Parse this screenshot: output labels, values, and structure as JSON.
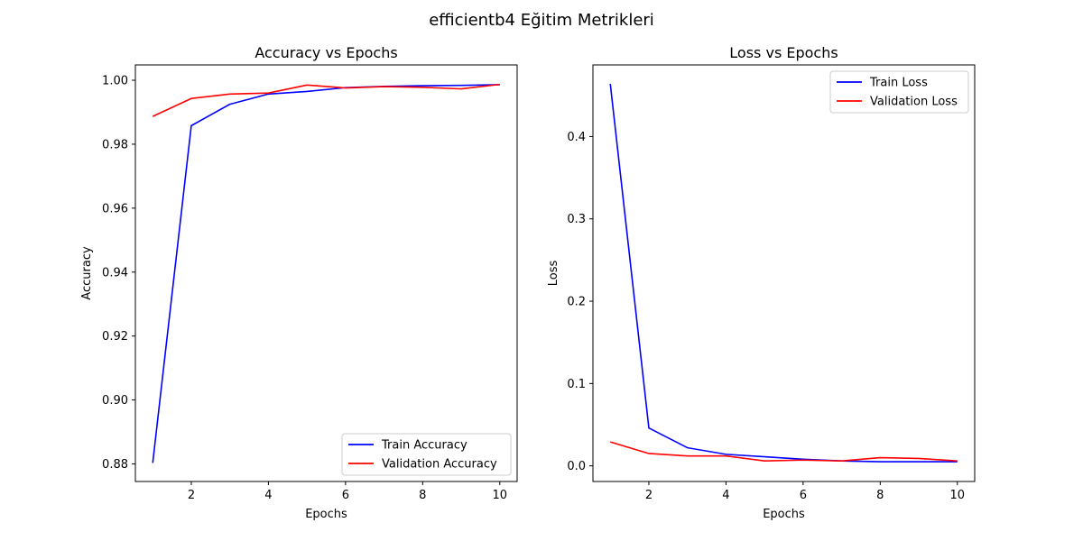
{
  "figure": {
    "suptitle": "efficientb4 Eğitim Metrikleri"
  },
  "chart_data": [
    {
      "type": "line",
      "title": "Accuracy vs Epochs",
      "xlabel": "Epochs",
      "ylabel": "Accuracy",
      "xlim": [
        0.55,
        10.45
      ],
      "ylim": [
        0.8745,
        1.0048
      ],
      "xticks": [
        2,
        4,
        6,
        8,
        10
      ],
      "xtick_labels": [
        "2",
        "4",
        "6",
        "8",
        "10"
      ],
      "yticks": [
        0.88,
        0.9,
        0.92,
        0.94,
        0.96,
        0.98,
        1.0
      ],
      "ytick_labels": [
        "0.88",
        "0.90",
        "0.92",
        "0.94",
        "0.96",
        "0.98",
        "1.00"
      ],
      "grid": false,
      "legend_position": "lower-right",
      "x": [
        1,
        2,
        3,
        4,
        5,
        6,
        7,
        8,
        9,
        10
      ],
      "series": [
        {
          "name": "Train Accuracy",
          "color": "#0000ff",
          "values": [
            0.8803,
            0.9858,
            0.9925,
            0.9957,
            0.9965,
            0.9977,
            0.9981,
            0.9983,
            0.9984,
            0.9986
          ]
        },
        {
          "name": "Validation Accuracy",
          "color": "#ff0000",
          "values": [
            0.9887,
            0.9943,
            0.9957,
            0.996,
            0.9985,
            0.9976,
            0.998,
            0.9978,
            0.9973,
            0.9987
          ]
        }
      ]
    },
    {
      "type": "line",
      "title": "Loss vs Epochs",
      "xlabel": "Epochs",
      "ylabel": "Loss",
      "xlim": [
        0.55,
        10.45
      ],
      "ylim": [
        -0.019,
        0.487
      ],
      "xticks": [
        2,
        4,
        6,
        8,
        10
      ],
      "xtick_labels": [
        "2",
        "4",
        "6",
        "8",
        "10"
      ],
      "yticks": [
        0.0,
        0.1,
        0.2,
        0.3,
        0.4
      ],
      "ytick_labels": [
        "0.0",
        "0.1",
        "0.2",
        "0.3",
        "0.4"
      ],
      "grid": false,
      "legend_position": "upper-right",
      "x": [
        1,
        2,
        3,
        4,
        5,
        6,
        7,
        8,
        9,
        10
      ],
      "series": [
        {
          "name": "Train Loss",
          "color": "#0000ff",
          "values": [
            0.464,
            0.046,
            0.022,
            0.014,
            0.011,
            0.008,
            0.006,
            0.005,
            0.005,
            0.005
          ]
        },
        {
          "name": "Validation Loss",
          "color": "#ff0000",
          "values": [
            0.029,
            0.015,
            0.012,
            0.012,
            0.006,
            0.007,
            0.006,
            0.01,
            0.009,
            0.006
          ]
        }
      ]
    }
  ]
}
